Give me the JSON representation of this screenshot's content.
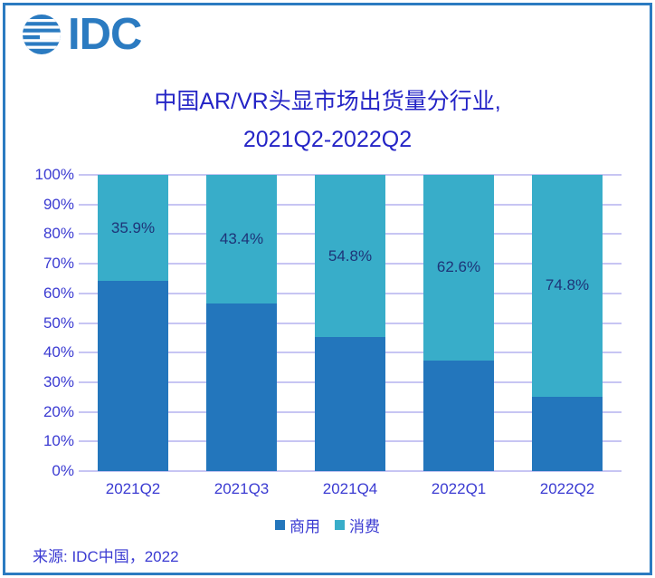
{
  "logo": {
    "text": "IDC"
  },
  "source": {
    "text": "来源: IDC中国，2022"
  },
  "colors": {
    "brand_blue": "#2B7BC1",
    "title_text": "#2424C6",
    "axis_text": "#3B3BD2",
    "data_label_text": "#1E3478",
    "gridline": "#C7C5F3"
  },
  "chart_data": {
    "type": "bar",
    "subtype": "100-percent-stacked-column",
    "title_line1": "中国AR/VR头显市场出货量分行业,",
    "title_line2": "2021Q2-2022Q2",
    "categories": [
      "2021Q2",
      "2021Q3",
      "2021Q4",
      "2022Q1",
      "2022Q2"
    ],
    "series": [
      {
        "name": "商用",
        "color": "#2376BC",
        "values": [
          64.1,
          56.6,
          45.2,
          37.4,
          25.2
        ]
      },
      {
        "name": "消费",
        "color": "#38ADC9",
        "values": [
          35.9,
          43.4,
          54.8,
          62.6,
          74.8
        ],
        "data_labels": [
          "35.9%",
          "43.4%",
          "54.8%",
          "62.6%",
          "74.8%"
        ]
      }
    ],
    "y_ticks": [
      "0%",
      "10%",
      "20%",
      "30%",
      "40%",
      "50%",
      "60%",
      "70%",
      "80%",
      "90%",
      "100%"
    ],
    "ylim": [
      0,
      100
    ],
    "grid": true,
    "legend_position": "bottom"
  }
}
